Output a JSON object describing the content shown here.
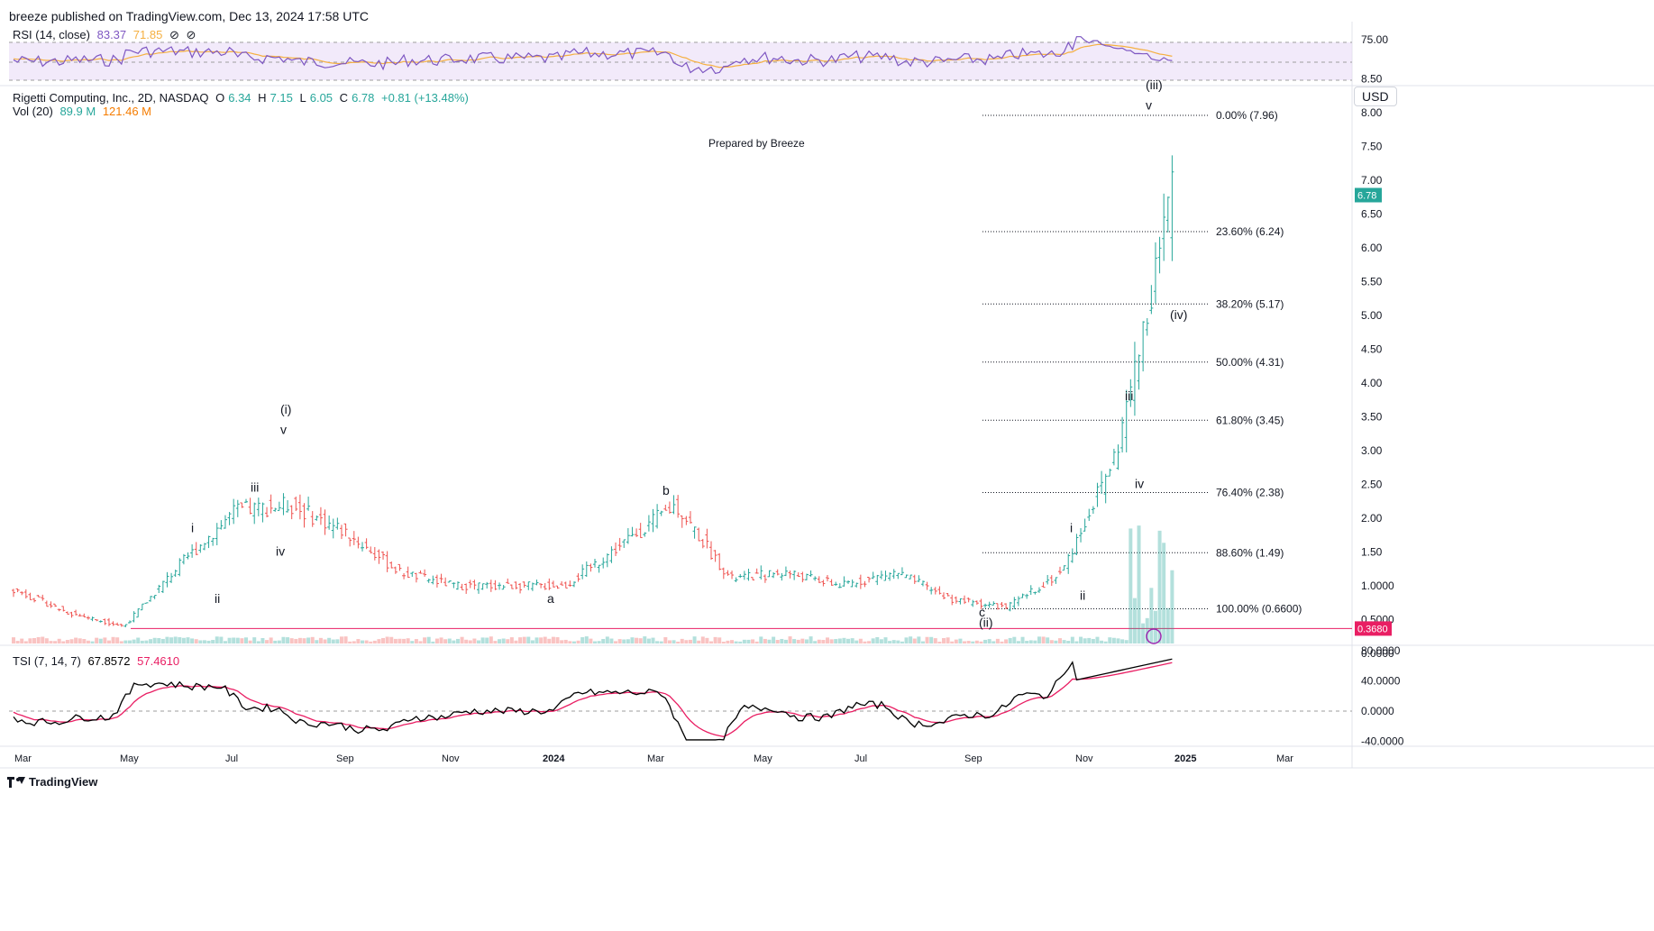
{
  "header": {
    "published": "breeze published on TradingView.com, Dec 13, 2024 17:58 UTC"
  },
  "rsi": {
    "label": "RSI (14, close)",
    "value": "83.37",
    "ma": "71.85",
    "icons": [
      "⊘",
      "⊘"
    ],
    "axis_label": "75.00",
    "colors": {
      "rsi": "#7e57c2",
      "ma": "#f5b041",
      "band": "#e9dcf7"
    }
  },
  "main": {
    "title": "Rigetti Computing, Inc., 2D, NASDAQ",
    "o_label": "O",
    "o": "6.34",
    "h_label": "H",
    "h": "7.15",
    "l_label": "L",
    "l": "6.05",
    "c_label": "C",
    "c": "6.78",
    "change": "+0.81 (+13.48%)",
    "vol_label": "Vol (20)",
    "vol": "89.9 M",
    "vol_ma": "121.46 M",
    "currency": "USD",
    "prepared": "Prepared by Breeze",
    "last_price": "6.78",
    "hline_value": "0.3680",
    "colors": {
      "up": "#26a69a",
      "down": "#ef5350",
      "hline": "#e91e63",
      "fib": "#131722"
    }
  },
  "price_axis": [
    "8.50",
    "8.00",
    "7.50",
    "7.00",
    "6.50",
    "6.00",
    "5.50",
    "5.00",
    "4.50",
    "4.00",
    "3.50",
    "3.00",
    "2.50",
    "2.00",
    "1.50",
    "1.0000",
    "0.5000",
    "0.0000"
  ],
  "tsi": {
    "label": "TSI (7, 14, 7)",
    "value": "67.8572",
    "signal": "57.4610",
    "axis": [
      "80.0000",
      "40.0000",
      "0.0000",
      "-40.0000"
    ],
    "colors": {
      "tsi": "#000000",
      "signal": "#e91e63"
    }
  },
  "time_axis": [
    "Mar",
    "May",
    "Jul",
    "Sep",
    "Nov",
    "2024",
    "Mar",
    "May",
    "Jul",
    "Sep",
    "Nov",
    "2025",
    "Mar"
  ],
  "footer": {
    "brand": "TradingView"
  },
  "chart_data": {
    "type": "line",
    "title": "Rigetti Computing, Inc., 2D, NASDAQ",
    "x": [
      "2023-03",
      "2023-04",
      "2023-05",
      "2023-06",
      "2023-07",
      "2023-08",
      "2023-09",
      "2023-10",
      "2023-11",
      "2023-12",
      "2024-01",
      "2024-02",
      "2024-03",
      "2024-04",
      "2024-05",
      "2024-06",
      "2024-07",
      "2024-08",
      "2024-09",
      "2024-10",
      "2024-11",
      "2024-12"
    ],
    "series": [
      {
        "name": "price",
        "values": [
          0.95,
          0.6,
          0.4,
          1.3,
          2.1,
          2.2,
          1.8,
          1.2,
          1.0,
          1.0,
          1.0,
          1.6,
          2.2,
          1.1,
          1.2,
          1.0,
          1.2,
          0.8,
          0.68,
          1.2,
          3.0,
          6.78
        ]
      }
    ],
    "ylim": [
      0,
      8.5
    ],
    "fib_levels": [
      {
        "label": "0.00% (7.96)",
        "value": 7.96
      },
      {
        "label": "23.60% (6.24)",
        "value": 6.24
      },
      {
        "label": "38.20% (5.17)",
        "value": 5.17
      },
      {
        "label": "50.00% (4.31)",
        "value": 4.31
      },
      {
        "label": "61.80% (3.45)",
        "value": 3.45
      },
      {
        "label": "76.40% (2.38)",
        "value": 2.38
      },
      {
        "label": "88.60% (1.49)",
        "value": 1.49
      },
      {
        "label": "100.00% (0.6600)",
        "value": 0.66
      }
    ],
    "wave_labels": [
      {
        "text": "i",
        "value": 1.85
      },
      {
        "text": "ii",
        "value": 0.8
      },
      {
        "text": "iii",
        "value": 2.45
      },
      {
        "text": "iv",
        "value": 1.5
      },
      {
        "text": "v",
        "value": 3.3
      },
      {
        "text": "(i)",
        "value": 3.6
      },
      {
        "text": "a",
        "value": 0.8
      },
      {
        "text": "b",
        "value": 2.4
      },
      {
        "text": "c",
        "value": 0.6
      },
      {
        "text": "(ii)",
        "value": 0.45
      },
      {
        "text": "i",
        "value": 1.85
      },
      {
        "text": "ii",
        "value": 0.85
      },
      {
        "text": "iii",
        "value": 3.8
      },
      {
        "text": "iv",
        "value": 2.5
      },
      {
        "text": "v",
        "value": 8.1
      },
      {
        "text": "(iii)",
        "value": 8.4
      },
      {
        "text": "(iv)",
        "value": 5.0
      }
    ],
    "horizontal_line": 0.368
  }
}
